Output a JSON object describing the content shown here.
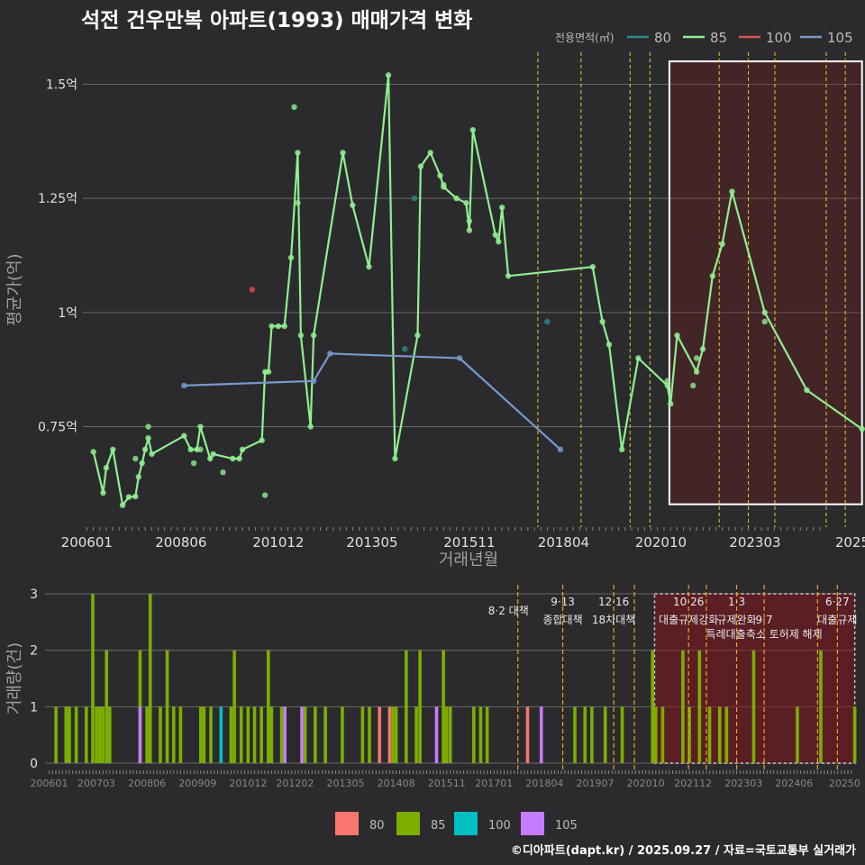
{
  "title": "석전 건우만복 아파트(1993) 매매가격 변화",
  "footer": "©디아파트(dapt.kr) / 2025.09.27 / 자료=국토교통부 실거래가",
  "colors": {
    "bg": "#2b2b2d",
    "grid": "#6a6a6a",
    "a80": "#f8766d",
    "a85": "#7cae00",
    "a100": "#00bfc4",
    "a105": "#c77cff",
    "line80": "#2a8c8c",
    "line85": "#90ee90",
    "line100": "#e05050",
    "line105": "#7799cc",
    "vline": "#e6d21f",
    "vline_orange": "#f0a020"
  },
  "chart_data": [
    {
      "type": "line",
      "ylabel": "평균가(억)",
      "xlabel": "거래년월",
      "legend_title": "전용면적(㎡)",
      "legend": [
        {
          "label": "80",
          "color_key": "line80"
        },
        {
          "label": "85",
          "color_key": "line85"
        },
        {
          "label": "100",
          "color_key": "line100"
        },
        {
          "label": "105",
          "color_key": "line105"
        }
      ],
      "yticks": [
        {
          "v": 0.75,
          "label": "0.75억"
        },
        {
          "v": 1.0,
          "label": "1억"
        },
        {
          "v": 1.25,
          "label": "1.25억"
        },
        {
          "v": 1.5,
          "label": "1.5억"
        }
      ],
      "xticks": [
        "200601",
        "200806",
        "201012",
        "201305",
        "201511",
        "201804",
        "202010",
        "202303",
        "2025"
      ],
      "ylim": [
        0.53,
        1.57
      ],
      "xlim": [
        2005.9,
        2025.95
      ],
      "highlight": {
        "x0": 2020.97,
        "x1": 2025.92,
        "y0": 0.58,
        "y1": 1.55
      },
      "policy_lines": [
        2017.59,
        2018.7,
        2019.96,
        2020.47,
        2022.25,
        2023.0,
        2023.68,
        2025.0,
        2025.49
      ],
      "series": [
        {
          "name": "85",
          "color_key": "line85",
          "points": [
            [
              2006.17,
              0.695
            ],
            [
              2006.42,
              0.605
            ],
            [
              2006.5,
              0.66
            ],
            [
              2006.67,
              0.7
            ],
            [
              2006.92,
              0.578
            ],
            [
              2007.08,
              0.596
            ],
            [
              2007.25,
              0.597
            ],
            [
              2007.33,
              0.64
            ],
            [
              2007.42,
              0.67
            ],
            [
              2007.5,
              0.7
            ],
            [
              2007.58,
              0.725
            ],
            [
              2007.67,
              0.69
            ],
            [
              2008.5,
              0.73
            ],
            [
              2008.67,
              0.7
            ],
            [
              2008.83,
              0.7
            ],
            [
              2008.92,
              0.75
            ],
            [
              2009.17,
              0.68
            ],
            [
              2009.25,
              0.69
            ],
            [
              2009.75,
              0.68
            ],
            [
              2009.92,
              0.68
            ],
            [
              2010.0,
              0.7
            ],
            [
              2010.5,
              0.72
            ],
            [
              2010.58,
              0.87
            ],
            [
              2010.67,
              0.87
            ],
            [
              2010.75,
              0.97
            ],
            [
              2010.92,
              0.97
            ],
            [
              2011.08,
              0.97
            ],
            [
              2011.25,
              1.12
            ],
            [
              2011.42,
              1.35
            ],
            [
              2011.5,
              0.95
            ],
            [
              2011.75,
              0.75
            ],
            [
              2011.83,
              0.95
            ],
            [
              2012.58,
              1.35
            ],
            [
              2012.83,
              1.235
            ],
            [
              2013.25,
              1.1
            ],
            [
              2013.75,
              1.52
            ],
            [
              2013.92,
              0.68
            ],
            [
              2014.5,
              0.95
            ],
            [
              2014.58,
              1.32
            ],
            [
              2014.83,
              1.35
            ],
            [
              2015.08,
              1.3
            ],
            [
              2015.17,
              1.275
            ],
            [
              2015.5,
              1.25
            ],
            [
              2015.75,
              1.24
            ],
            [
              2015.83,
              1.18
            ],
            [
              2015.92,
              1.4
            ],
            [
              2016.5,
              1.17
            ],
            [
              2016.58,
              1.155
            ],
            [
              2016.67,
              1.23
            ],
            [
              2016.83,
              1.08
            ],
            [
              2019.0,
              1.1
            ],
            [
              2019.25,
              0.98
            ],
            [
              2019.42,
              0.93
            ],
            [
              2019.75,
              0.7
            ],
            [
              2020.17,
              0.9
            ],
            [
              2020.92,
              0.84
            ],
            [
              2021.0,
              0.8
            ],
            [
              2021.17,
              0.95
            ],
            [
              2021.67,
              0.87
            ],
            [
              2021.83,
              0.92
            ],
            [
              2022.08,
              1.08
            ],
            [
              2022.33,
              1.15
            ],
            [
              2022.58,
              1.265
            ],
            [
              2023.42,
              1.0
            ],
            [
              2024.5,
              0.83
            ],
            [
              2025.92,
              0.745
            ]
          ]
        },
        {
          "name": "105",
          "color_key": "line105",
          "points": [
            [
              2008.5,
              0.84
            ],
            [
              2011.83,
              0.85
            ],
            [
              2012.25,
              0.91
            ],
            [
              2015.58,
              0.9
            ],
            [
              2018.17,
              0.7
            ]
          ]
        }
      ],
      "extra_points": [
        {
          "color_key": "line85",
          "x": 2011.33,
          "y": 1.45
        },
        {
          "color_key": "line85",
          "x": 2011.42,
          "y": 1.24
        },
        {
          "color_key": "line85",
          "x": 2010.58,
          "y": 0.6
        },
        {
          "color_key": "line85",
          "x": 2007.25,
          "y": 0.68
        },
        {
          "color_key": "line85",
          "x": 2007.58,
          "y": 0.75
        },
        {
          "color_key": "line85",
          "x": 2008.75,
          "y": 0.67
        },
        {
          "color_key": "line85",
          "x": 2008.92,
          "y": 0.7
        },
        {
          "color_key": "line85",
          "x": 2009.5,
          "y": 0.65
        },
        {
          "color_key": "line85",
          "x": 2015.17,
          "y": 1.28
        },
        {
          "color_key": "line85",
          "x": 2015.83,
          "y": 1.2
        },
        {
          "color_key": "line85",
          "x": 2020.92,
          "y": 0.85
        },
        {
          "color_key": "line85",
          "x": 2021.67,
          "y": 0.9
        },
        {
          "color_key": "line85",
          "x": 2021.58,
          "y": 0.84
        },
        {
          "color_key": "line85",
          "x": 2023.42,
          "y": 0.98
        },
        {
          "color_key": "line80",
          "x": 2014.42,
          "y": 1.25
        },
        {
          "color_key": "line80",
          "x": 2014.17,
          "y": 0.92
        },
        {
          "color_key": "line80",
          "x": 2017.83,
          "y": 0.98
        },
        {
          "color_key": "line100",
          "x": 2010.25,
          "y": 1.05
        }
      ]
    },
    {
      "type": "bar",
      "ylabel": "거래량(건)",
      "yticks": [
        0,
        1,
        2,
        3
      ],
      "ylim": [
        0,
        3
      ],
      "xticks": [
        "200601",
        "200703",
        "200806",
        "200909",
        "201012",
        "201202",
        "201305",
        "201408",
        "201511",
        "201701",
        "201804",
        "201907",
        "202010",
        "202112",
        "202303",
        "202406",
        "20250"
      ],
      "xlim": [
        2005.9,
        2025.95
      ],
      "highlight": {
        "x0": 2020.97,
        "x1": 2025.92
      },
      "legend": [
        {
          "label": "80",
          "color_key": "a80"
        },
        {
          "label": "85",
          "color_key": "a85"
        },
        {
          "label": "100",
          "color_key": "a100"
        },
        {
          "label": "105",
          "color_key": "a105"
        }
      ],
      "bars": [
        {
          "x": 2006.17,
          "v": 1,
          "k": "a85"
        },
        {
          "x": 2006.42,
          "v": 1,
          "k": "a85"
        },
        {
          "x": 2006.5,
          "v": 1,
          "k": "a85"
        },
        {
          "x": 2006.67,
          "v": 1,
          "k": "a85"
        },
        {
          "x": 2006.92,
          "v": 1,
          "k": "a85"
        },
        {
          "x": 2007.08,
          "v": 3,
          "k": "a85"
        },
        {
          "x": 2007.17,
          "v": 1,
          "k": "a85"
        },
        {
          "x": 2007.25,
          "v": 1,
          "k": "a85"
        },
        {
          "x": 2007.33,
          "v": 1,
          "k": "a85"
        },
        {
          "x": 2007.42,
          "v": 2,
          "k": "a85"
        },
        {
          "x": 2007.5,
          "v": 1,
          "k": "a85"
        },
        {
          "x": 2008.25,
          "v": 2,
          "k": "a85"
        },
        {
          "x": 2008.25,
          "v": 1,
          "k": "a105"
        },
        {
          "x": 2008.42,
          "v": 1,
          "k": "a85"
        },
        {
          "x": 2008.5,
          "v": 3,
          "k": "a85"
        },
        {
          "x": 2008.75,
          "v": 1,
          "k": "a85"
        },
        {
          "x": 2008.92,
          "v": 2,
          "k": "a85"
        },
        {
          "x": 2009.08,
          "v": 1,
          "k": "a85"
        },
        {
          "x": 2009.25,
          "v": 1,
          "k": "a85"
        },
        {
          "x": 2009.75,
          "v": 1,
          "k": "a85"
        },
        {
          "x": 2009.83,
          "v": 1,
          "k": "a85"
        },
        {
          "x": 2010.0,
          "v": 1,
          "k": "a85"
        },
        {
          "x": 2010.25,
          "v": 1,
          "k": "a100"
        },
        {
          "x": 2010.5,
          "v": 1,
          "k": "a85"
        },
        {
          "x": 2010.58,
          "v": 2,
          "k": "a85"
        },
        {
          "x": 2010.75,
          "v": 1,
          "k": "a85"
        },
        {
          "x": 2010.92,
          "v": 1,
          "k": "a85"
        },
        {
          "x": 2011.08,
          "v": 1,
          "k": "a85"
        },
        {
          "x": 2011.25,
          "v": 1,
          "k": "a85"
        },
        {
          "x": 2011.42,
          "v": 2,
          "k": "a85"
        },
        {
          "x": 2011.5,
          "v": 1,
          "k": "a85"
        },
        {
          "x": 2011.75,
          "v": 1,
          "k": "a85"
        },
        {
          "x": 2011.83,
          "v": 1,
          "k": "a105"
        },
        {
          "x": 2012.25,
          "v": 1,
          "k": "a105"
        },
        {
          "x": 2012.33,
          "v": 1,
          "k": "a85"
        },
        {
          "x": 2012.58,
          "v": 1,
          "k": "a85"
        },
        {
          "x": 2012.83,
          "v": 1,
          "k": "a85"
        },
        {
          "x": 2013.25,
          "v": 1,
          "k": "a85"
        },
        {
          "x": 2013.75,
          "v": 1,
          "k": "a85"
        },
        {
          "x": 2013.92,
          "v": 1,
          "k": "a85"
        },
        {
          "x": 2014.17,
          "v": 1,
          "k": "a80"
        },
        {
          "x": 2014.42,
          "v": 1,
          "k": "a80"
        },
        {
          "x": 2014.5,
          "v": 1,
          "k": "a85"
        },
        {
          "x": 2014.58,
          "v": 1,
          "k": "a85"
        },
        {
          "x": 2014.83,
          "v": 2,
          "k": "a85"
        },
        {
          "x": 2015.08,
          "v": 1,
          "k": "a85"
        },
        {
          "x": 2015.17,
          "v": 2,
          "k": "a85"
        },
        {
          "x": 2015.58,
          "v": 1,
          "k": "a105"
        },
        {
          "x": 2015.75,
          "v": 2,
          "k": "a85"
        },
        {
          "x": 2015.83,
          "v": 1,
          "k": "a85"
        },
        {
          "x": 2015.92,
          "v": 1,
          "k": "a85"
        },
        {
          "x": 2016.5,
          "v": 1,
          "k": "a85"
        },
        {
          "x": 2016.67,
          "v": 1,
          "k": "a85"
        },
        {
          "x": 2016.83,
          "v": 1,
          "k": "a85"
        },
        {
          "x": 2017.83,
          "v": 1,
          "k": "a80"
        },
        {
          "x": 2018.17,
          "v": 1,
          "k": "a105"
        },
        {
          "x": 2019.0,
          "v": 1,
          "k": "a85"
        },
        {
          "x": 2019.25,
          "v": 1,
          "k": "a85"
        },
        {
          "x": 2019.42,
          "v": 1,
          "k": "a85"
        },
        {
          "x": 2019.75,
          "v": 1,
          "k": "a85"
        },
        {
          "x": 2020.17,
          "v": 1,
          "k": "a85"
        },
        {
          "x": 2020.92,
          "v": 2,
          "k": "a85"
        },
        {
          "x": 2021.0,
          "v": 1,
          "k": "a85"
        },
        {
          "x": 2021.17,
          "v": 1,
          "k": "a85"
        },
        {
          "x": 2021.67,
          "v": 2,
          "k": "a85"
        },
        {
          "x": 2021.83,
          "v": 1,
          "k": "a85"
        },
        {
          "x": 2022.08,
          "v": 2,
          "k": "a85"
        },
        {
          "x": 2022.33,
          "v": 1,
          "k": "a85"
        },
        {
          "x": 2022.58,
          "v": 1,
          "k": "a85"
        },
        {
          "x": 2022.75,
          "v": 1,
          "k": "a85"
        },
        {
          "x": 2023.42,
          "v": 2,
          "k": "a85"
        },
        {
          "x": 2024.5,
          "v": 1,
          "k": "a85"
        },
        {
          "x": 2025.08,
          "v": 2,
          "k": "a85"
        },
        {
          "x": 2025.92,
          "v": 1,
          "k": "a85"
        }
      ],
      "policy_lines": [
        2017.59,
        2018.7,
        2019.96,
        2020.47,
        2021.81,
        2022.25,
        2023.0,
        2023.68,
        2025.0,
        2025.49
      ],
      "annotations": [
        {
          "x": 2017.59,
          "text": "8·2 대책",
          "row": 0,
          "anchor": "end"
        },
        {
          "x": 2018.7,
          "text": "9·13",
          "row": 1,
          "anchor": "middle"
        },
        {
          "x": 2018.7,
          "text": "종합대책",
          "row": 2,
          "anchor": "middle"
        },
        {
          "x": 2019.96,
          "text": "12·16",
          "row": 1,
          "anchor": "middle"
        },
        {
          "x": 2019.96,
          "text": "18차대책",
          "row": 2,
          "anchor": "middle"
        },
        {
          "x": 2021.81,
          "text": "10·26",
          "row": 1,
          "anchor": "middle"
        },
        {
          "x": 2021.81,
          "text": "대출규제강화",
          "row": 2,
          "anchor": "middle"
        },
        {
          "x": 2023.0,
          "text": "1·3",
          "row": 1,
          "anchor": "middle"
        },
        {
          "x": 2023.0,
          "text": "규제완화",
          "row": 2,
          "anchor": "middle"
        },
        {
          "x": 2023.68,
          "text": "9·7",
          "row": 2,
          "anchor": "middle"
        },
        {
          "x": 2023.68,
          "text": "특례대출축소 토허제 해제",
          "row": 3,
          "anchor": "middle"
        },
        {
          "x": 2025.49,
          "text": "6·27",
          "row": 1,
          "anchor": "middle"
        },
        {
          "x": 2025.49,
          "text": "대출규제",
          "row": 2,
          "anchor": "middle"
        }
      ]
    }
  ]
}
